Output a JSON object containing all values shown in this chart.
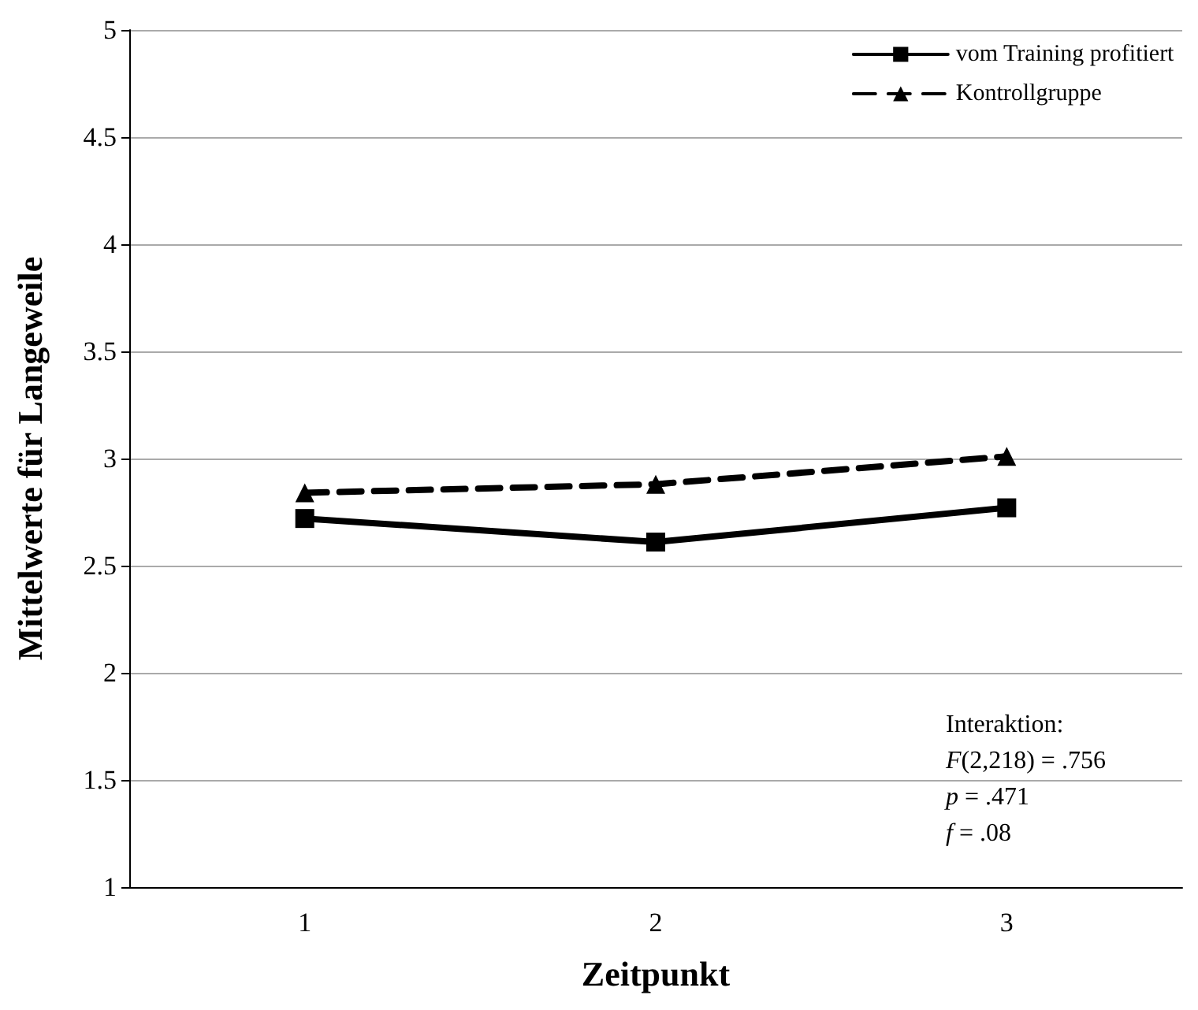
{
  "chart_data": {
    "type": "line",
    "xlabel": "Zeitpunkt",
    "ylabel": "Mittelwerte für Langeweile",
    "categories": [
      "1",
      "2",
      "3"
    ],
    "series": [
      {
        "name": "vom Training profitiert",
        "color": "#000000",
        "values": [
          2.72,
          2.61,
          2.77
        ],
        "marker": "square",
        "line_style": "solid"
      },
      {
        "name": "Kontrollgruppe",
        "color": "#000000",
        "values": [
          2.84,
          2.88,
          3.01
        ],
        "marker": "triangle",
        "line_style": "dashed"
      }
    ],
    "ylim": [
      1,
      5
    ],
    "yticks": [
      1,
      1.5,
      2,
      2.5,
      3,
      3.5,
      4,
      4.5,
      5
    ],
    "grid": "y",
    "legend": "top right",
    "annotations": [
      "Interaktion:",
      "F(2,218) = .756",
      "p = .471",
      "f = .08"
    ]
  }
}
